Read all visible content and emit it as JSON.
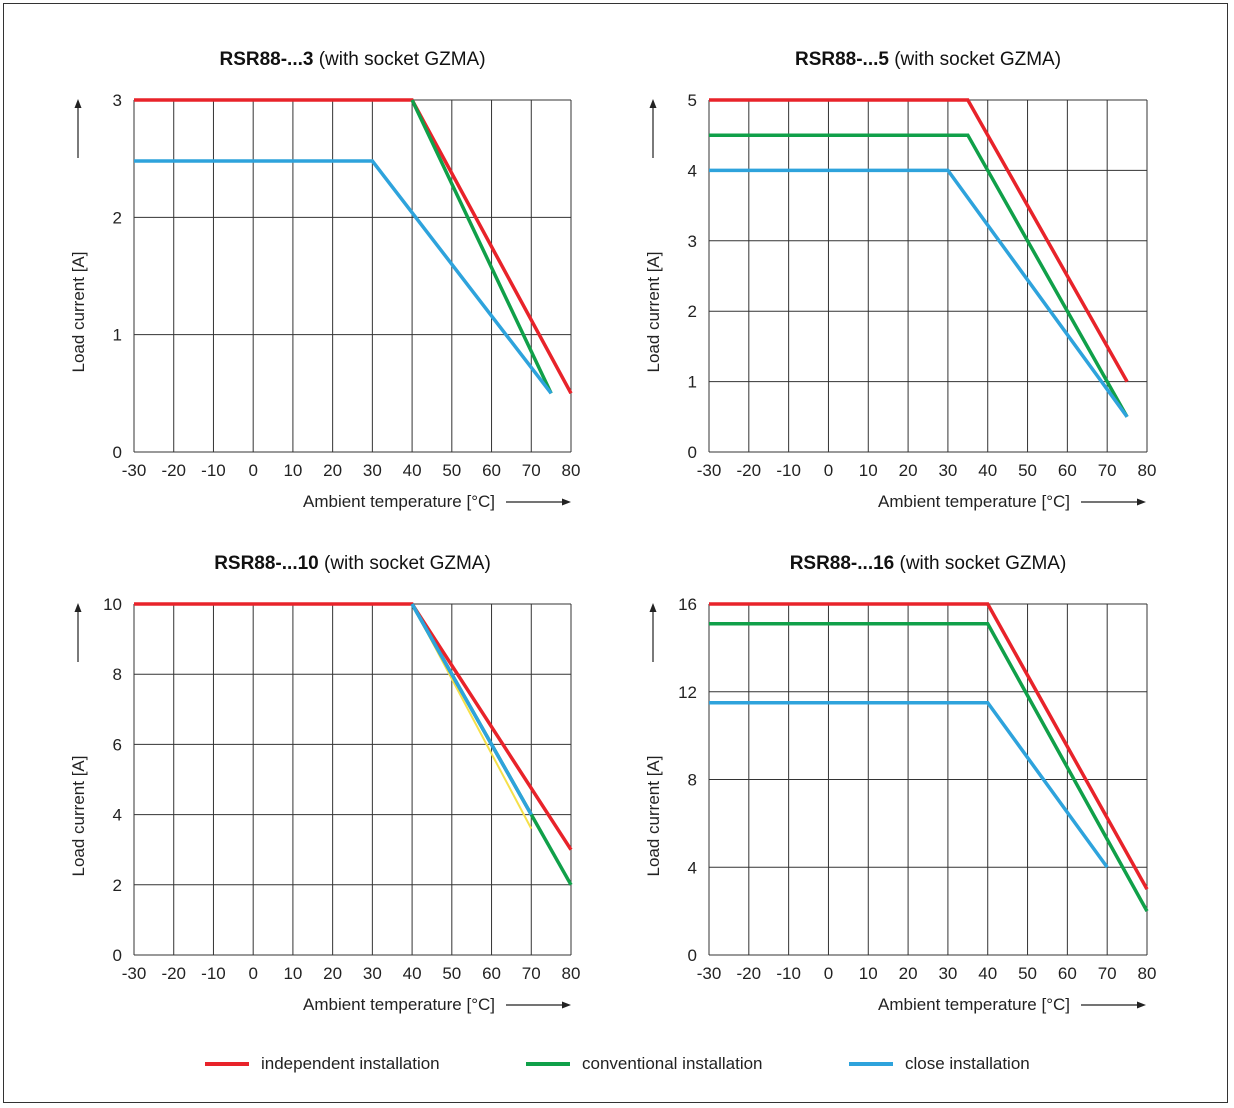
{
  "chart_data": [
    {
      "type": "line",
      "title_bold": "RSR88-...3",
      "title_rest": " (with socket GZMA)",
      "xlabel": "Ambient temperature [°C]",
      "ylabel": "Load current [A]",
      "xlim": [
        -30,
        80
      ],
      "ylim": [
        0,
        3
      ],
      "xticks": [
        -30,
        -20,
        -10,
        0,
        10,
        20,
        30,
        40,
        50,
        60,
        70,
        80
      ],
      "yticks": [
        0,
        1,
        2,
        3
      ],
      "grid": true,
      "series": [
        {
          "name": "independent installation",
          "color": "#e8232a",
          "x": [
            -30,
            40,
            80
          ],
          "y": [
            3,
            3,
            0.5
          ]
        },
        {
          "name": "conventional installation",
          "color": "#10a049",
          "x": [
            40,
            75
          ],
          "y": [
            3,
            0.5
          ]
        },
        {
          "name": "close installation",
          "color": "#2ea3dc",
          "x": [
            -30,
            30,
            75
          ],
          "y": [
            2.48,
            2.48,
            0.5
          ]
        }
      ]
    },
    {
      "type": "line",
      "title_bold": "RSR88-...5",
      "title_rest": " (with socket GZMA)",
      "xlabel": "Ambient temperature [°C]",
      "ylabel": "Load current [A]",
      "xlim": [
        -30,
        80
      ],
      "ylim": [
        0,
        5
      ],
      "xticks": [
        -30,
        -20,
        -10,
        0,
        10,
        20,
        30,
        40,
        50,
        60,
        70,
        80
      ],
      "yticks": [
        0,
        1,
        2,
        3,
        4,
        5
      ],
      "grid": true,
      "series": [
        {
          "name": "independent installation",
          "color": "#e8232a",
          "x": [
            -30,
            35,
            75
          ],
          "y": [
            5,
            5,
            1
          ]
        },
        {
          "name": "conventional installation",
          "color": "#10a049",
          "x": [
            -30,
            35,
            75
          ],
          "y": [
            4.5,
            4.5,
            0.5
          ]
        },
        {
          "name": "close installation",
          "color": "#2ea3dc",
          "x": [
            -30,
            30,
            75
          ],
          "y": [
            4,
            4,
            0.5
          ]
        }
      ]
    },
    {
      "type": "line",
      "title_bold": "RSR88-...10",
      "title_rest": " (with socket GZMA)",
      "xlabel": "Ambient temperature [°C]",
      "ylabel": "Load current [A]",
      "xlim": [
        -30,
        80
      ],
      "ylim": [
        0,
        10
      ],
      "xticks": [
        -30,
        -20,
        -10,
        0,
        10,
        20,
        30,
        40,
        50,
        60,
        70,
        80
      ],
      "yticks": [
        0,
        2,
        4,
        6,
        8,
        10
      ],
      "grid": true,
      "series": [
        {
          "name": "",
          "color": "#f5e04a",
          "x": [
            40,
            70
          ],
          "y": [
            10,
            3.6
          ]
        },
        {
          "name": "independent installation",
          "color": "#e8232a",
          "x": [
            -30,
            40,
            80
          ],
          "y": [
            10,
            10,
            3
          ]
        },
        {
          "name": "conventional installation",
          "color": "#10a049",
          "x": [
            40,
            80
          ],
          "y": [
            10,
            2
          ]
        },
        {
          "name": "close installation",
          "color": "#2ea3dc",
          "x": [
            40,
            70
          ],
          "y": [
            10,
            4
          ]
        }
      ]
    },
    {
      "type": "line",
      "title_bold": "RSR88-...16",
      "title_rest": " (with socket GZMA)",
      "xlabel": "Ambient temperature [°C]",
      "ylabel": "Load current [A]",
      "xlim": [
        -30,
        80
      ],
      "ylim": [
        0,
        16
      ],
      "xticks": [
        -30,
        -20,
        -10,
        0,
        10,
        20,
        30,
        40,
        50,
        60,
        70,
        80
      ],
      "yticks": [
        0,
        4,
        8,
        12,
        16
      ],
      "grid": true,
      "series": [
        {
          "name": "independent installation",
          "color": "#e8232a",
          "x": [
            -30,
            40,
            80
          ],
          "y": [
            16,
            16,
            3
          ]
        },
        {
          "name": "conventional installation",
          "color": "#10a049",
          "x": [
            -30,
            40,
            80
          ],
          "y": [
            15.1,
            15.1,
            2
          ]
        },
        {
          "name": "close installation",
          "color": "#2ea3dc",
          "x": [
            -30,
            40,
            70
          ],
          "y": [
            11.5,
            11.5,
            4
          ]
        }
      ]
    }
  ],
  "legend": [
    {
      "label": "independent installation",
      "color": "#e8232a"
    },
    {
      "label": "conventional installation",
      "color": "#10a049"
    },
    {
      "label": "close installation",
      "color": "#2ea3dc"
    }
  ]
}
